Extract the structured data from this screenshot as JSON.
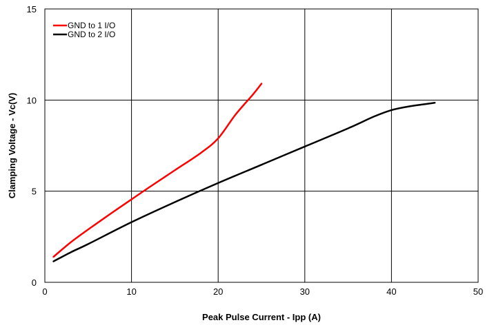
{
  "chart_data": {
    "type": "line",
    "title": "",
    "xlabel": "Peak Pulse Current - Ipp (A)",
    "ylabel": "Clamping Voltage - Vc(V)",
    "xlim": [
      0,
      50
    ],
    "ylim": [
      0,
      15
    ],
    "x_ticks": [
      "0",
      "10",
      "20",
      "30",
      "40",
      "50"
    ],
    "y_ticks": [
      "0",
      "5",
      "10",
      "15"
    ],
    "grid": true,
    "legend_position": "top-left",
    "series": [
      {
        "name": "GND to 1 I/O",
        "color": "#ff0000",
        "x": [
          1,
          3,
          5,
          8,
          10,
          12,
          15,
          18,
          20,
          22,
          24,
          25
        ],
        "y": [
          1.4,
          2.2,
          2.9,
          3.9,
          4.55,
          5.2,
          6.15,
          7.1,
          7.9,
          9.2,
          10.3,
          10.9
        ]
      },
      {
        "name": "GND to 2 I/O",
        "color": "#000000",
        "x": [
          1,
          3,
          5,
          10,
          15,
          20,
          25,
          30,
          35,
          38,
          40,
          42,
          45
        ],
        "y": [
          1.15,
          1.65,
          2.1,
          3.3,
          4.4,
          5.45,
          6.45,
          7.45,
          8.45,
          9.1,
          9.45,
          9.65,
          9.85
        ]
      }
    ]
  }
}
